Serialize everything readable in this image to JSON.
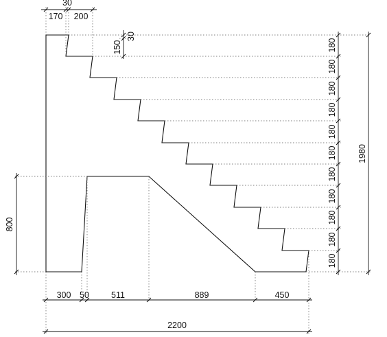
{
  "drawing": {
    "top_dimensions": [
      "30",
      "170",
      "200"
    ],
    "rise_detail": [
      "150",
      "30"
    ],
    "riser_heights": [
      "180",
      "180",
      "180",
      "180",
      "180",
      "180",
      "180",
      "180",
      "180",
      "180",
      "180"
    ],
    "total_height": "1980",
    "left_height": "800",
    "bottom_segments": [
      "300",
      "50",
      "511",
      "889",
      "450"
    ],
    "total_width": "2200"
  }
}
